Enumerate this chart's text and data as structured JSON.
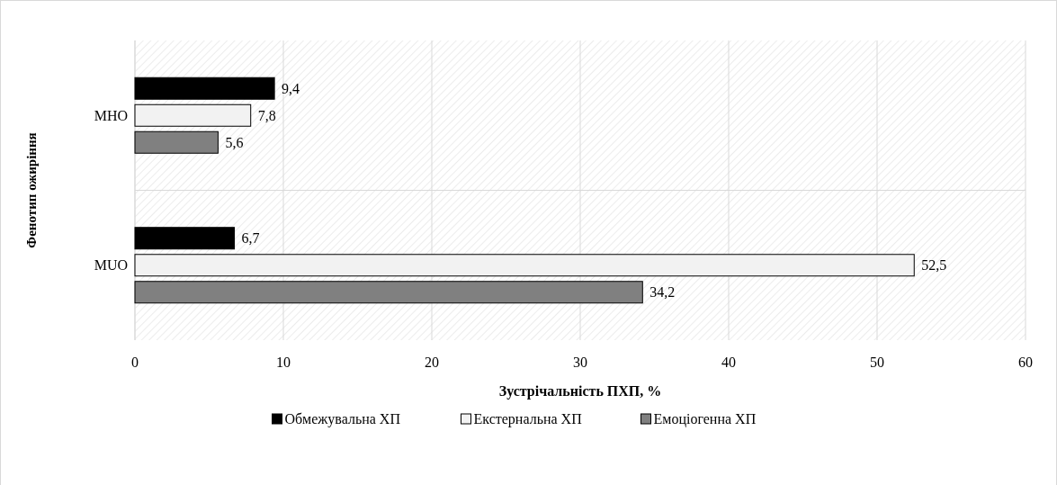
{
  "chart_data": {
    "type": "bar",
    "orientation": "horizontal",
    "xlabel": "Зустрічальність ПХП, %",
    "ylabel": "Фенотип ожиріння",
    "categories": [
      "MHO",
      "MUO"
    ],
    "series": [
      {
        "name": "Обмежувальна ХП",
        "color": "#000000",
        "values": [
          9.4,
          6.7
        ],
        "value_labels": [
          "9,4",
          "6,7"
        ]
      },
      {
        "name": "Екстернальна ХП",
        "color": "#f2f2f2",
        "values": [
          7.8,
          52.5
        ],
        "value_labels": [
          "7,8",
          "52,5"
        ]
      },
      {
        "name": "Емоціогенна ХП",
        "color": "#808080",
        "values": [
          5.6,
          34.2
        ],
        "value_labels": [
          "5,6",
          "34,2"
        ]
      }
    ],
    "xlim": [
      0,
      60
    ],
    "xticks": [
      0,
      10,
      20,
      30,
      40,
      50,
      60
    ],
    "grid": "x",
    "legend": "bottom"
  }
}
